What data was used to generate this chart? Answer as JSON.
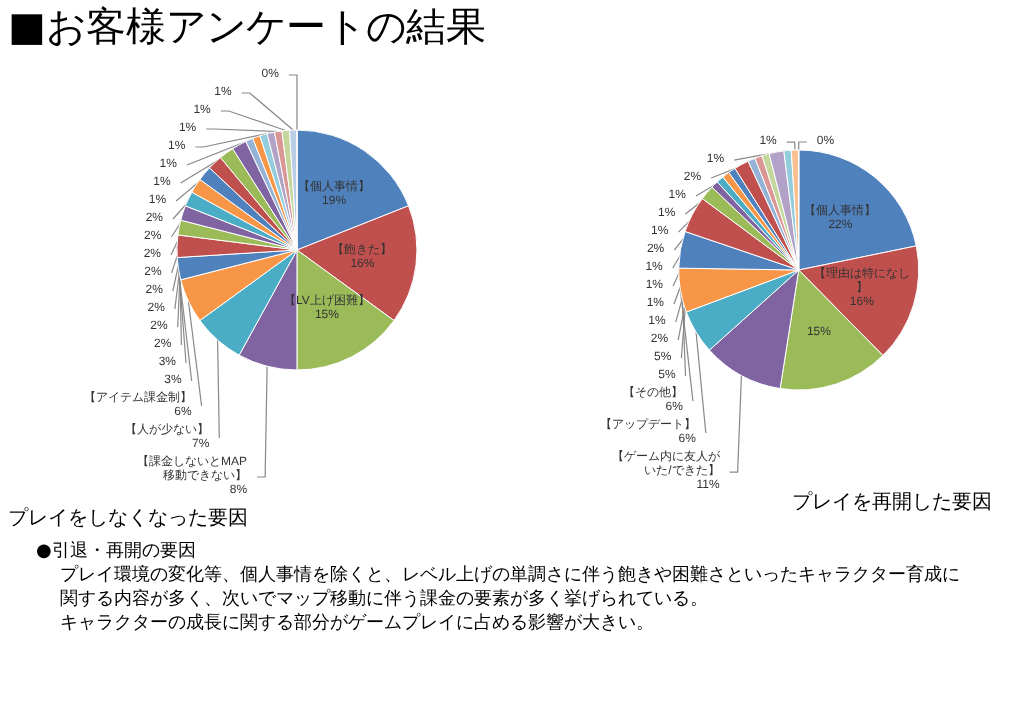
{
  "chart_data": [
    {
      "type": "pie",
      "title": "■お客様アンケートの結果",
      "subtitle": "プレイをしなくなった要因",
      "categories": [
        "【個人事情】",
        "【飽きた】",
        "【LV上げ困難】",
        "【課金しないとMAP移動できない】",
        "【人が少ない】",
        "【アイテム課金制】",
        null,
        null,
        null,
        null,
        null,
        null,
        null,
        null,
        null,
        null,
        null,
        null,
        null,
        null,
        null,
        null,
        null,
        null
      ],
      "values": [
        19,
        16,
        15,
        8,
        7,
        6,
        3,
        3,
        2,
        2,
        2,
        2,
        2,
        2,
        2,
        2,
        1,
        1,
        1,
        1,
        1,
        1,
        1,
        0
      ],
      "value_labels": [
        "19%",
        "16%",
        "15%",
        "8%",
        "7%",
        "6%",
        "3%",
        "3%",
        "2%",
        "2%",
        "2%",
        "2%",
        "2%",
        "2%",
        "2%",
        "2%",
        "1%",
        "1%",
        "1%",
        "1%",
        "1%",
        "1%",
        "1%",
        "0%"
      ],
      "colors": [
        "#4f81bd",
        "#c0504d",
        "#9bbb59",
        "#8064a2",
        "#4bacc6",
        "#f79646",
        "#4f81bd",
        "#c0504d",
        "#9bbb59",
        "#8064a2",
        "#4bacc6",
        "#f79646",
        "#4f81bd",
        "#c0504d",
        "#9bbb59",
        "#8064a2",
        "#95b3d7",
        "#f79646",
        "#93cddd",
        "#b3a2c7",
        "#d99694",
        "#c3d69b",
        "#b9cde5",
        "#e6b9b8"
      ]
    },
    {
      "type": "pie",
      "subtitle": "プレイを再開した要因",
      "categories": [
        "【個人事情】",
        "【理由は特になし】",
        null,
        "【ゲーム内に友人がいた/できた】",
        "【アップデート】",
        "【その他】",
        null,
        null,
        null,
        null,
        null,
        null,
        null,
        null,
        null,
        null,
        null,
        null,
        null,
        null,
        null
      ],
      "values": [
        22,
        16,
        15,
        11,
        6,
        6,
        5,
        5,
        2,
        1,
        1,
        1,
        1,
        2,
        1,
        1,
        1,
        2,
        1,
        1,
        0
      ],
      "value_labels": [
        "22%",
        "16%",
        "15%",
        "11%",
        "6%",
        "6%",
        "5%",
        "5%",
        "2%",
        "1%",
        "1%",
        "1%",
        "1%",
        "2%",
        "1%",
        "1%",
        "1%",
        "2%",
        "1%",
        "1%",
        "0%"
      ],
      "colors": [
        "#4f81bd",
        "#c0504d",
        "#9bbb59",
        "#8064a2",
        "#4bacc6",
        "#f79646",
        "#4f81bd",
        "#c0504d",
        "#9bbb59",
        "#8064a2",
        "#4bacc6",
        "#f79646",
        "#4f81bd",
        "#c0504d",
        "#95b3d7",
        "#d99694",
        "#c3d69b",
        "#b3a2c7",
        "#93cddd",
        "#fac090",
        "#dbe5f1"
      ]
    },
    {
      "type": "other",
      "title": "●引退・再開の要因",
      "annotations": [
        "プレイ環境の変化等、個人事情を除くと、レベル上げの単調さに伴う飽きや困難さといったキャラクター育成に",
        "関する内容が多く、次いでマップ移動に伴う課金の要素が多く挙げられている。",
        "キャラクターの成長に関する部分がゲームプレイに占める影響が大きい。"
      ]
    }
  ]
}
